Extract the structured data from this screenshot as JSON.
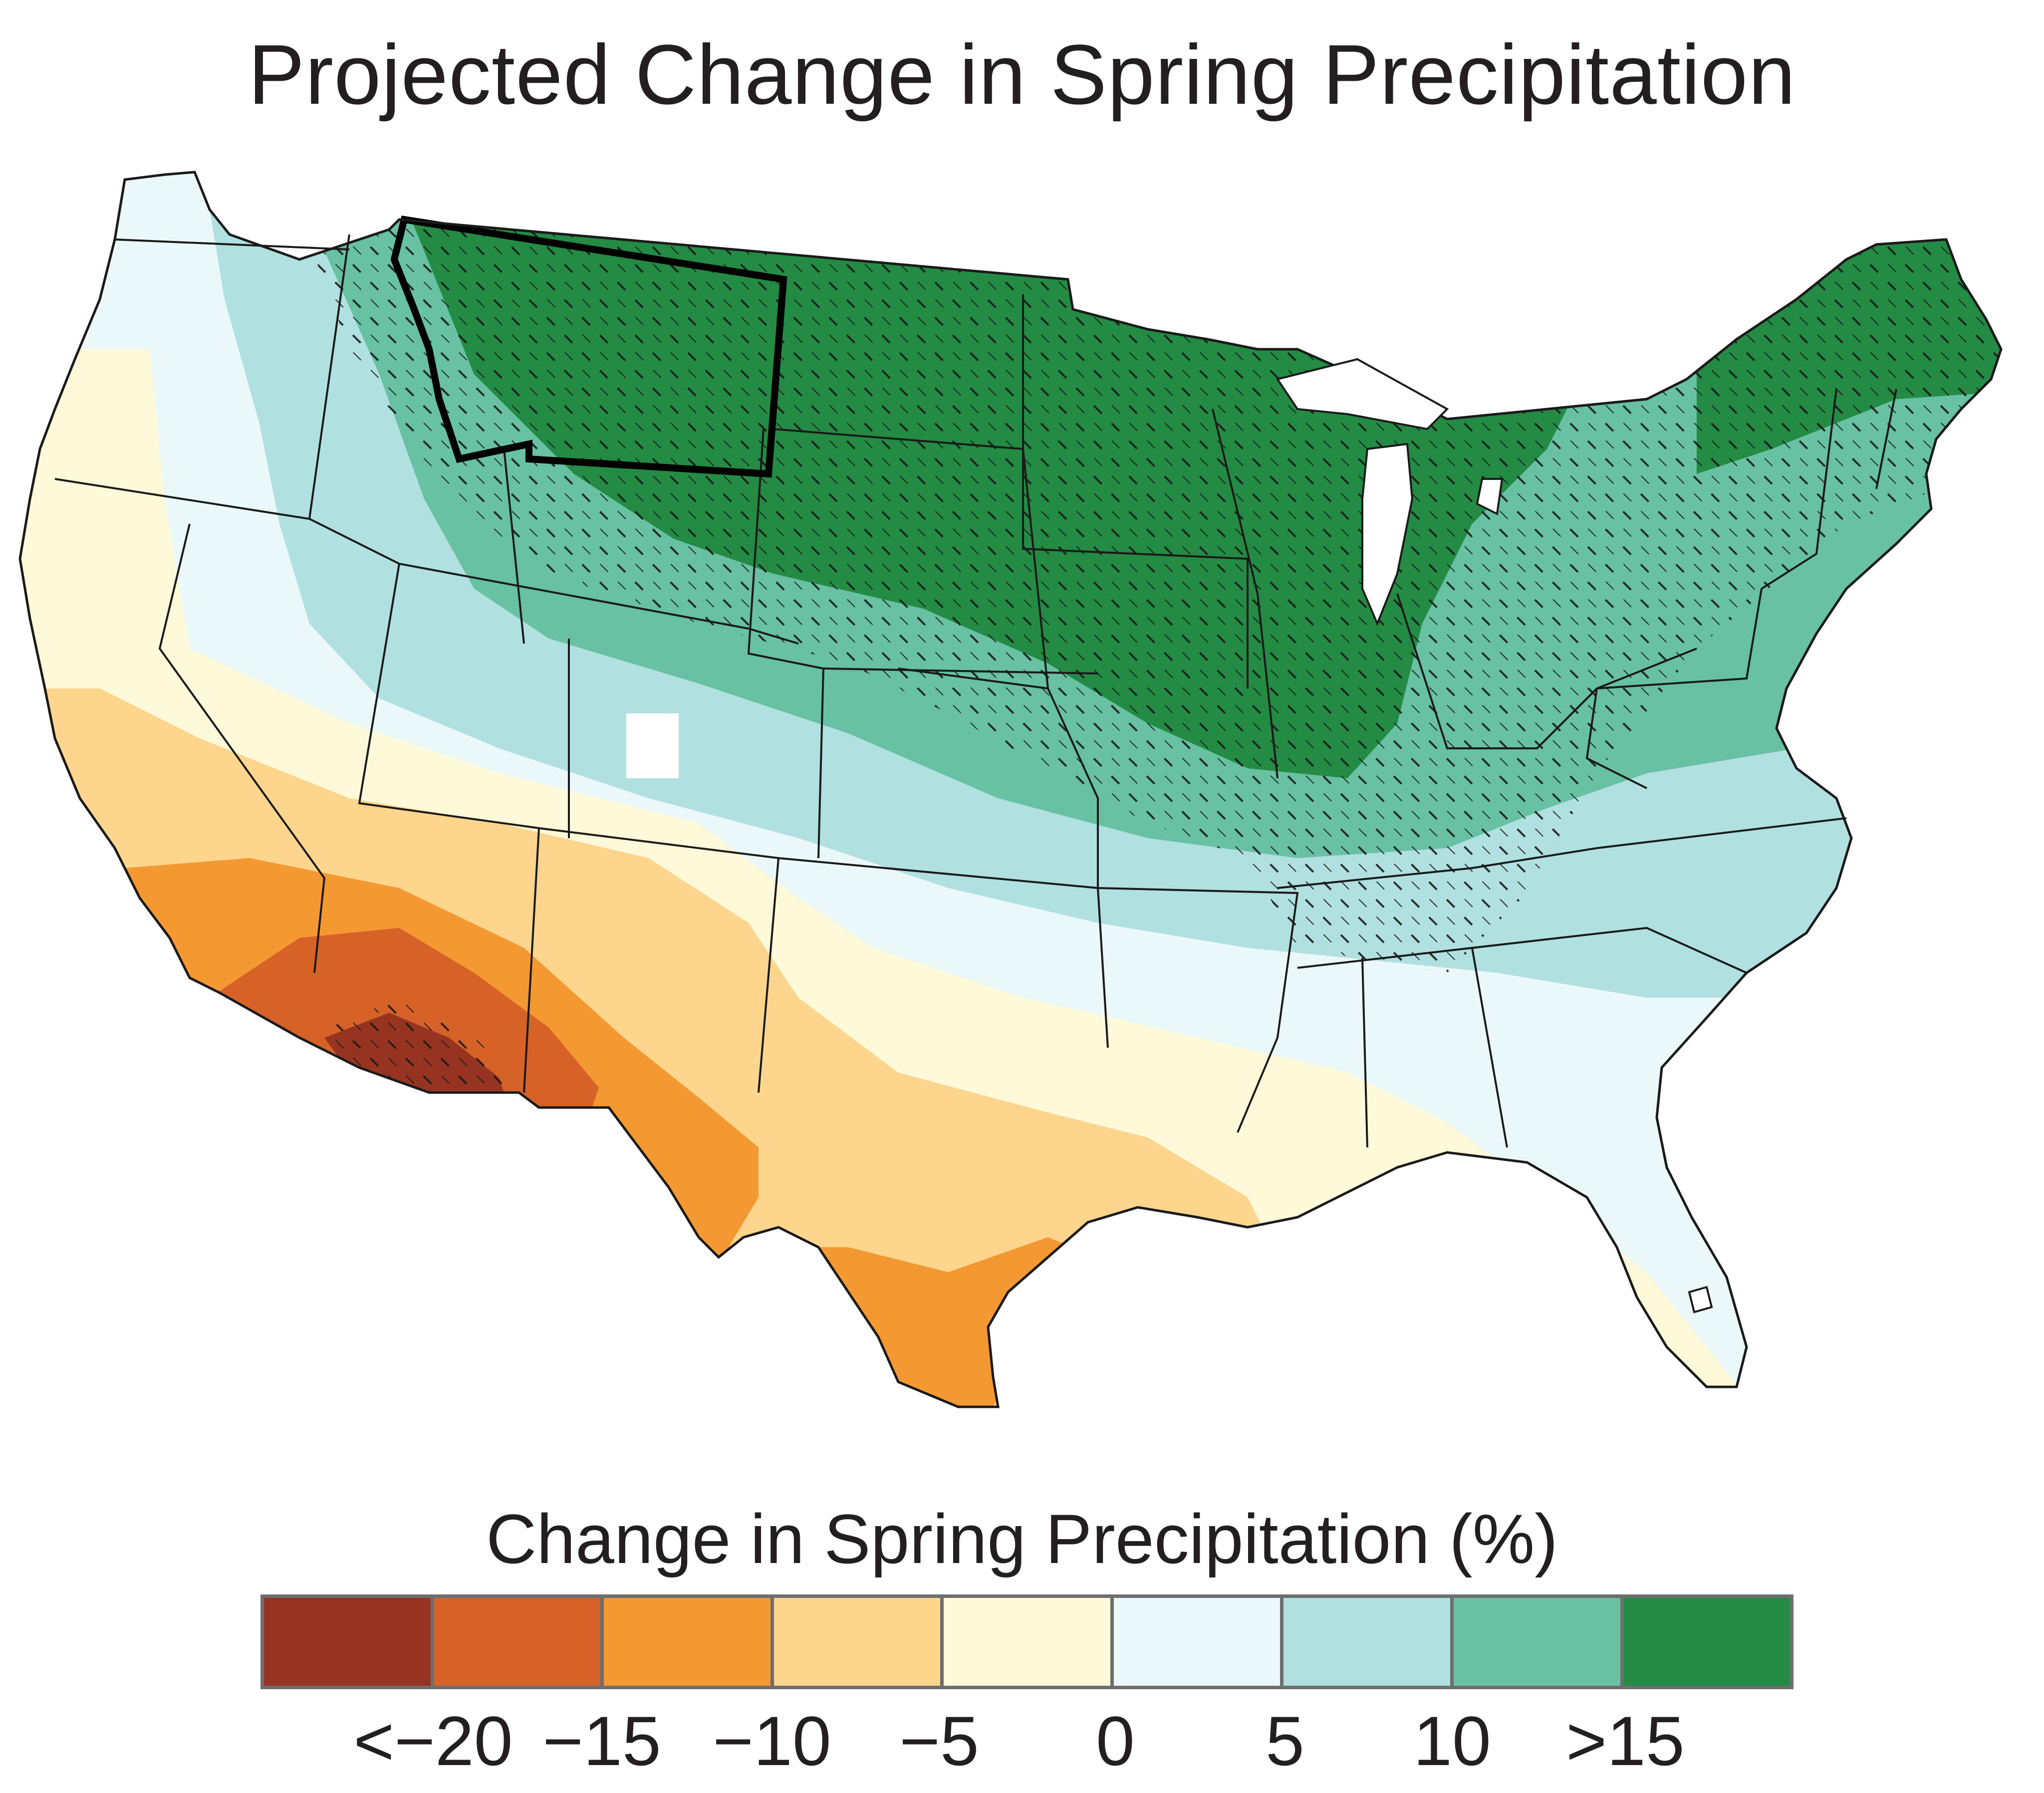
{
  "title": "Projected Change in Spring Precipitation",
  "legend": {
    "title": "Change in Spring Precipitation (%)",
    "bins": [
      {
        "color": "#973421"
      },
      {
        "color": "#d66228"
      },
      {
        "color": "#f49832"
      },
      {
        "color": "#fdd58d"
      },
      {
        "color": "#fef9d8"
      },
      {
        "color": "#ebf8fa"
      },
      {
        "color": "#b1e0e0"
      },
      {
        "color": "#67c1a2"
      },
      {
        "color": "#238b44"
      }
    ],
    "tick_labels": [
      "<−20",
      "−15",
      "−10",
      "−5",
      "0",
      "5",
      "10",
      ">15"
    ]
  },
  "map": {
    "region": "Contiguous United States",
    "highlighted_state": "Montana",
    "hatching": "stippled diagonal hatching marks areas where models agree on the change"
  }
}
